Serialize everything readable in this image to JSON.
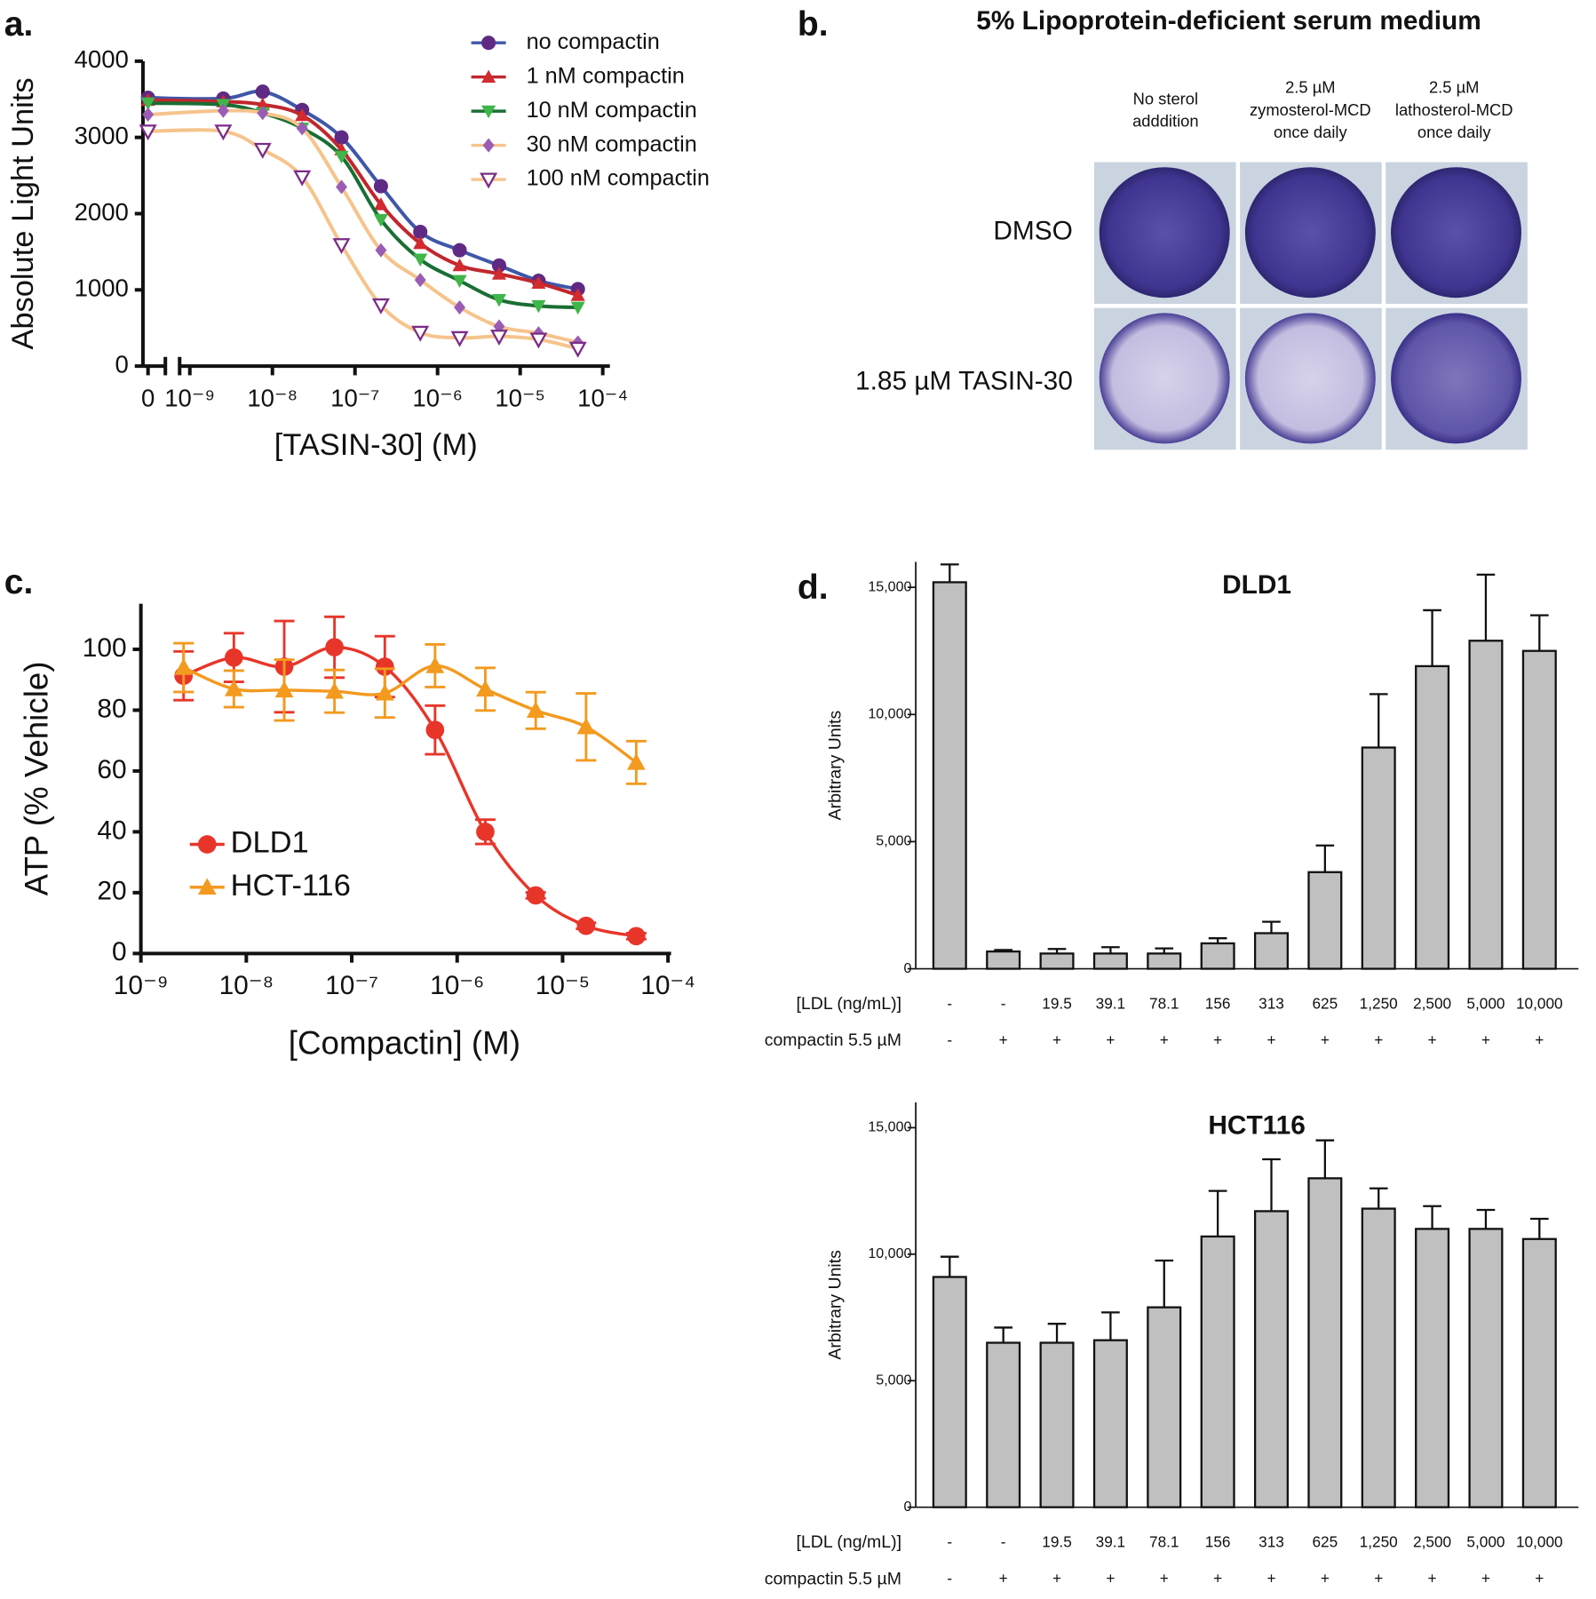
{
  "chart_data": [
    {
      "type": "line",
      "panel_label": "a.",
      "xlabel": "[TASIN-30] (M)",
      "ylabel": "Absolute Light Units",
      "x": [
        0,
        2.54e-09,
        7.62e-09,
        2.29e-08,
        6.86e-08,
        2.06e-07,
        6.17e-07,
        1.85e-06,
        5.56e-06,
        1.67e-05,
        5e-05
      ],
      "xscale": "log",
      "x_axis_break": true,
      "xlim": [
        1e-09,
        0.0001
      ],
      "xticks": [
        0,
        {
          "value": 1e-09,
          "label": "10⁻⁹"
        },
        {
          "value": 1e-08,
          "label": "10⁻⁸"
        },
        {
          "value": 1e-07,
          "label": "10⁻⁷"
        },
        {
          "value": 1e-06,
          "label": "10⁻⁶"
        },
        {
          "value": 1e-05,
          "label": "10⁻⁵"
        },
        {
          "value": 0.0001,
          "label": "10⁻⁴"
        }
      ],
      "ylim": [
        0,
        4000
      ],
      "yticks": [
        0,
        1000,
        2000,
        3000,
        4000
      ],
      "legend": "upper right",
      "series": [
        {
          "name": "no compactin",
          "color": "#3f57a8",
          "marker": "circle",
          "marker_color": "#5e2a84",
          "values": [
            3520,
            3510,
            3600,
            3360,
            3000,
            2360,
            1760,
            1520,
            1320,
            1120,
            1010
          ]
        },
        {
          "name": "1 nM compactin",
          "color": "#c0272d",
          "marker": "triangle",
          "marker_color": "#d12a2f",
          "values": [
            3490,
            3470,
            3430,
            3290,
            2840,
            2120,
            1610,
            1320,
            1210,
            1090,
            930
          ]
        },
        {
          "name": "10 nM compactin",
          "color": "#1a6e33",
          "marker": "triangle-down",
          "marker_color": "#3fb54a",
          "values": [
            3450,
            3430,
            3320,
            3120,
            2750,
            1920,
            1400,
            1120,
            870,
            790,
            770
          ]
        },
        {
          "name": "30 nM compactin",
          "color": "#f5c48c",
          "marker": "diamond",
          "marker_color": "#9a5cb4",
          "values": [
            3300,
            3350,
            3320,
            3120,
            2350,
            1520,
            1130,
            770,
            520,
            430,
            310
          ]
        },
        {
          "name": "100 nM compactin",
          "color": "#f5c48c",
          "marker": "open-triangle-down",
          "marker_color": "#7a2c87",
          "values": [
            3080,
            3080,
            2840,
            2480,
            1590,
            800,
            440,
            370,
            390,
            350,
            230
          ]
        }
      ]
    },
    {
      "type": "line",
      "panel_label": "c.",
      "xlabel": "[Compactin] (M)",
      "ylabel": "ATP (% Vehicle)",
      "x": [
        2.54e-09,
        7.62e-09,
        2.29e-08,
        6.86e-08,
        2.06e-07,
        6.17e-07,
        1.85e-06,
        5.56e-06,
        1.67e-05,
        5e-05
      ],
      "xscale": "log",
      "xlim": [
        1e-09,
        0.0001
      ],
      "xticks": [
        {
          "value": 1e-09,
          "label": "10⁻⁹"
        },
        {
          "value": 1e-08,
          "label": "10⁻⁸"
        },
        {
          "value": 1e-07,
          "label": "10⁻⁷"
        },
        {
          "value": 1e-06,
          "label": "10⁻⁶"
        },
        {
          "value": 1e-05,
          "label": "10⁻⁵"
        },
        {
          "value": 0.0001,
          "label": "10⁻⁴"
        }
      ],
      "ylim": [
        0,
        115
      ],
      "yticks": [
        0,
        20,
        40,
        60,
        80,
        100
      ],
      "legend": "lower left",
      "series": [
        {
          "name": "DLD1",
          "color": "#e8352a",
          "marker": "circle",
          "marker_color": "#e8352a",
          "values": [
            91.3,
            97.3,
            94.3,
            100.7,
            94.3,
            73.5,
            40,
            19.1,
            9.1,
            5.7
          ],
          "errors": [
            8,
            8,
            15,
            10,
            10,
            8,
            4,
            1,
            1,
            1
          ]
        },
        {
          "name": "HCT-116",
          "color": "#f39a1f",
          "marker": "triangle",
          "marker_color": "#f39a1f",
          "values": [
            94,
            87,
            86.6,
            86.2,
            85.6,
            94.6,
            86.9,
            79.9,
            74.5,
            62.8
          ],
          "errors": [
            8,
            6,
            10,
            7,
            8,
            7,
            7,
            6,
            11,
            7
          ]
        }
      ]
    },
    {
      "type": "bar",
      "panel_label": "d.",
      "title": "DLD1",
      "ylabel": "Arbitrary Units",
      "color": "#c0c0c0",
      "category_label": "[LDL (ng/mL)]",
      "categories": [
        "-",
        "-",
        "19.5",
        "39.1",
        "78.1",
        "156",
        "313",
        "625",
        "1,250",
        "2,500",
        "5,000",
        "10,000"
      ],
      "category_2_label": "compactin 5.5 µM",
      "categories_2": [
        "-",
        "+",
        "+",
        "+",
        "+",
        "+",
        "+",
        "+",
        "+",
        "+",
        "+",
        "+"
      ],
      "values": [
        15200,
        680,
        600,
        600,
        600,
        1000,
        1400,
        3800,
        8700,
        11900,
        12900,
        12500
      ],
      "errors": [
        700,
        60,
        180,
        250,
        200,
        200,
        450,
        1050,
        2100,
        2200,
        2600,
        1400
      ],
      "ylim": [
        0,
        16000
      ],
      "yticks": [
        0,
        {
          "value": 5000,
          "label": "5,000"
        },
        {
          "value": 10000,
          "label": "10,000"
        },
        {
          "value": 15000,
          "label": "15,000"
        }
      ]
    },
    {
      "type": "bar",
      "title": "HCT116",
      "ylabel": "Arbitrary Units",
      "color": "#c0c0c0",
      "category_label": "[LDL (ng/mL)]",
      "categories": [
        "-",
        "-",
        "19.5",
        "39.1",
        "78.1",
        "156",
        "313",
        "625",
        "1,250",
        "2,500",
        "5,000",
        "10,000"
      ],
      "category_2_label": "compactin 5.5 µM",
      "categories_2": [
        "-",
        "+",
        "+",
        "+",
        "+",
        "+",
        "+",
        "+",
        "+",
        "+",
        "+",
        "+"
      ],
      "values": [
        9100,
        6500,
        6500,
        6600,
        7900,
        10700,
        11700,
        13000,
        11800,
        11000,
        11000,
        10600
      ],
      "errors": [
        800,
        600,
        750,
        1100,
        1850,
        1800,
        2050,
        1500,
        800,
        900,
        750,
        800
      ],
      "ylim": [
        0,
        16000
      ],
      "yticks": [
        0,
        {
          "value": 5000,
          "label": "5,000"
        },
        {
          "value": 10000,
          "label": "10,000"
        },
        {
          "value": 15000,
          "label": "15,000"
        }
      ]
    }
  ],
  "panel_b": {
    "panel_label": "b.",
    "title": "5% Lipoprotein-deficient serum medium",
    "columns": [
      [
        "No sterol",
        "adddition"
      ],
      [
        "2.5 µM",
        "zymosterol-MCD",
        "once daily"
      ],
      [
        "2.5 µM",
        "lathosterol-MCD",
        "once daily"
      ]
    ],
    "rows": [
      "DMSO",
      "1.85 µM TASIN-30"
    ]
  }
}
